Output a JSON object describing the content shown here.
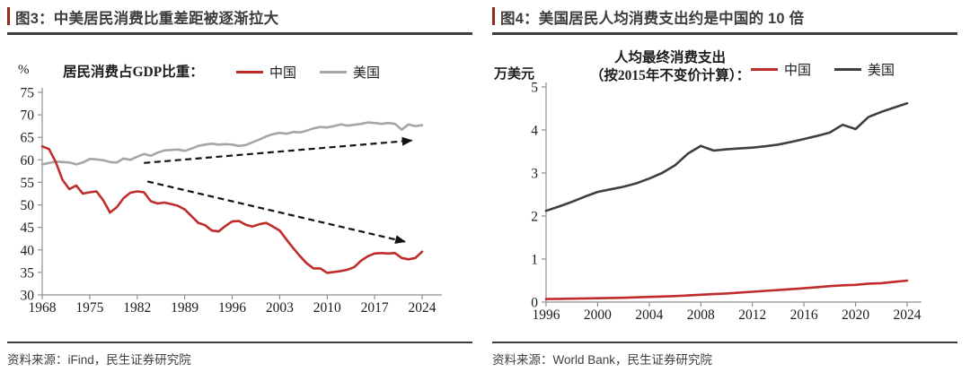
{
  "panels": [
    {
      "title": "图3：中美居民消费比重差距被逐渐拉大",
      "source": "资料来源：iFind，民生证券研究院"
    },
    {
      "title": "图4：美国居民人均消费支出约是中国的 10 倍",
      "source": "资料来源：World Bank，民生证券研究院"
    }
  ],
  "colors": {
    "china_red": "#bf2c2a",
    "us_gray": "#a6a6a6",
    "us_dark": "#3f3f3f",
    "axis": "#8f8f8f",
    "title_dark": "#3d3d3d",
    "accent_bar": "#8f2a24"
  },
  "chart_data": [
    {
      "type": "line",
      "title": "居民消费占GDP比重：",
      "unit": "%",
      "xlabel": "",
      "ylabel": "",
      "x_range": [
        1968,
        2024
      ],
      "x_step": 1,
      "x_ticks": [
        1968,
        1975,
        1982,
        1989,
        1996,
        2003,
        2010,
        2017,
        2024
      ],
      "ylim": [
        30,
        75
      ],
      "y_ticks": [
        30,
        35,
        40,
        45,
        50,
        55,
        60,
        65,
        70,
        75
      ],
      "grid": false,
      "legend_position": "top",
      "series": [
        {
          "name": "中国",
          "color": "#bf2c2a",
          "values": [
            63.0,
            62.4,
            59.5,
            55.5,
            53.5,
            54.3,
            52.5,
            52.8,
            53.0,
            51.0,
            48.3,
            49.5,
            51.5,
            52.7,
            53.0,
            52.8,
            50.8,
            50.3,
            50.5,
            50.2,
            49.8,
            49.0,
            47.5,
            46.0,
            45.5,
            44.3,
            44.1,
            45.3,
            46.3,
            46.4,
            45.6,
            45.2,
            45.7,
            46.0,
            45.2,
            44.3,
            42.3,
            40.4,
            38.6,
            37.0,
            35.9,
            35.9,
            34.9,
            35.1,
            35.3,
            35.6,
            36.2,
            37.6,
            38.6,
            39.2,
            39.3,
            39.2,
            39.3,
            38.2,
            37.9,
            38.2,
            39.6
          ]
        },
        {
          "name": "美国",
          "color": "#a6a6a6",
          "values": [
            59.0,
            59.3,
            59.6,
            59.5,
            59.4,
            59.0,
            59.4,
            60.2,
            60.1,
            59.9,
            59.5,
            59.4,
            60.3,
            60.0,
            60.7,
            61.3,
            60.9,
            61.6,
            62.1,
            62.2,
            62.3,
            62.0,
            62.5,
            63.1,
            63.4,
            63.6,
            63.4,
            63.5,
            63.4,
            63.1,
            63.3,
            63.9,
            64.5,
            65.2,
            65.7,
            66.0,
            65.8,
            66.2,
            66.1,
            66.5,
            67.0,
            67.3,
            67.2,
            67.5,
            67.9,
            67.6,
            67.8,
            68.0,
            68.3,
            68.2,
            68.0,
            68.2,
            68.0,
            66.7,
            67.9,
            67.5,
            67.7
          ]
        }
      ],
      "annotations": [
        {
          "type": "arrow",
          "from": [
            1983.0,
            59.3
          ],
          "to": [
            2022.5,
            64.3
          ]
        },
        {
          "type": "arrow",
          "from": [
            1983.5,
            55.2
          ],
          "to": [
            2021.5,
            41.8
          ]
        }
      ]
    },
    {
      "type": "line",
      "title_line1": "人均最终消费支出",
      "title_line2": "（按2015年不变价计算）：",
      "unit": "万美元",
      "xlabel": "",
      "ylabel": "",
      "x_range": [
        1996,
        2024
      ],
      "x_step": 1,
      "x_ticks": [
        1996,
        2000,
        2004,
        2008,
        2012,
        2016,
        2020,
        2024
      ],
      "ylim": [
        0,
        5
      ],
      "y_ticks": [
        0,
        1,
        2,
        3,
        4,
        5
      ],
      "grid": false,
      "legend_position": "top",
      "series": [
        {
          "name": "中国",
          "color": "#bf2c2a",
          "values": [
            0.07,
            0.075,
            0.08,
            0.085,
            0.09,
            0.095,
            0.1,
            0.11,
            0.12,
            0.13,
            0.14,
            0.155,
            0.17,
            0.185,
            0.2,
            0.22,
            0.24,
            0.26,
            0.28,
            0.3,
            0.32,
            0.345,
            0.37,
            0.39,
            0.4,
            0.43,
            0.44,
            0.47,
            0.5
          ]
        },
        {
          "name": "美国",
          "color": "#3f3f3f",
          "values": [
            2.12,
            2.22,
            2.33,
            2.45,
            2.56,
            2.62,
            2.68,
            2.76,
            2.87,
            3.0,
            3.18,
            3.45,
            3.63,
            3.52,
            3.55,
            3.57,
            3.59,
            3.62,
            3.66,
            3.72,
            3.79,
            3.86,
            3.94,
            4.12,
            4.02,
            4.3,
            4.42,
            4.52,
            4.62
          ]
        }
      ],
      "annotations": []
    }
  ]
}
